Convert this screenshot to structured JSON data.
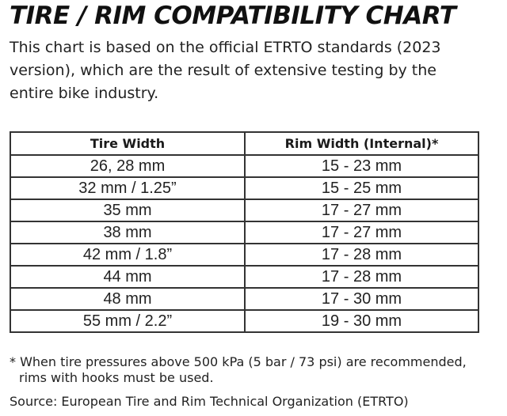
{
  "title": "TIRE / RIM COMPATIBILITY CHART",
  "intro": "This chart is based on the official ETRTO standards (2023 version), which are the result of extensive testing by the entire bike industry.",
  "table": {
    "headers": [
      "Tire Width",
      "Rim Width (Internal)*"
    ],
    "rows": [
      [
        "26, 28 mm",
        "15 - 23 mm"
      ],
      [
        "32 mm / 1.25”",
        "15 - 25 mm"
      ],
      [
        "35 mm",
        "17 - 27 mm"
      ],
      [
        "38 mm",
        "17 - 27 mm"
      ],
      [
        "42 mm / 1.8”",
        "17 - 28 mm"
      ],
      [
        "44 mm",
        "17 - 28 mm"
      ],
      [
        "48 mm",
        "17 - 30 mm"
      ],
      [
        "55 mm / 2.2”",
        "19 - 30 mm"
      ]
    ]
  },
  "footnote": {
    "line1": "* When tire pressures above 500 kPa (5 bar / 73 psi) are recommended,",
    "line2": "rims with hooks must be used."
  },
  "source": "Source: European Tire and Rim Technical Organization (ETRTO)"
}
